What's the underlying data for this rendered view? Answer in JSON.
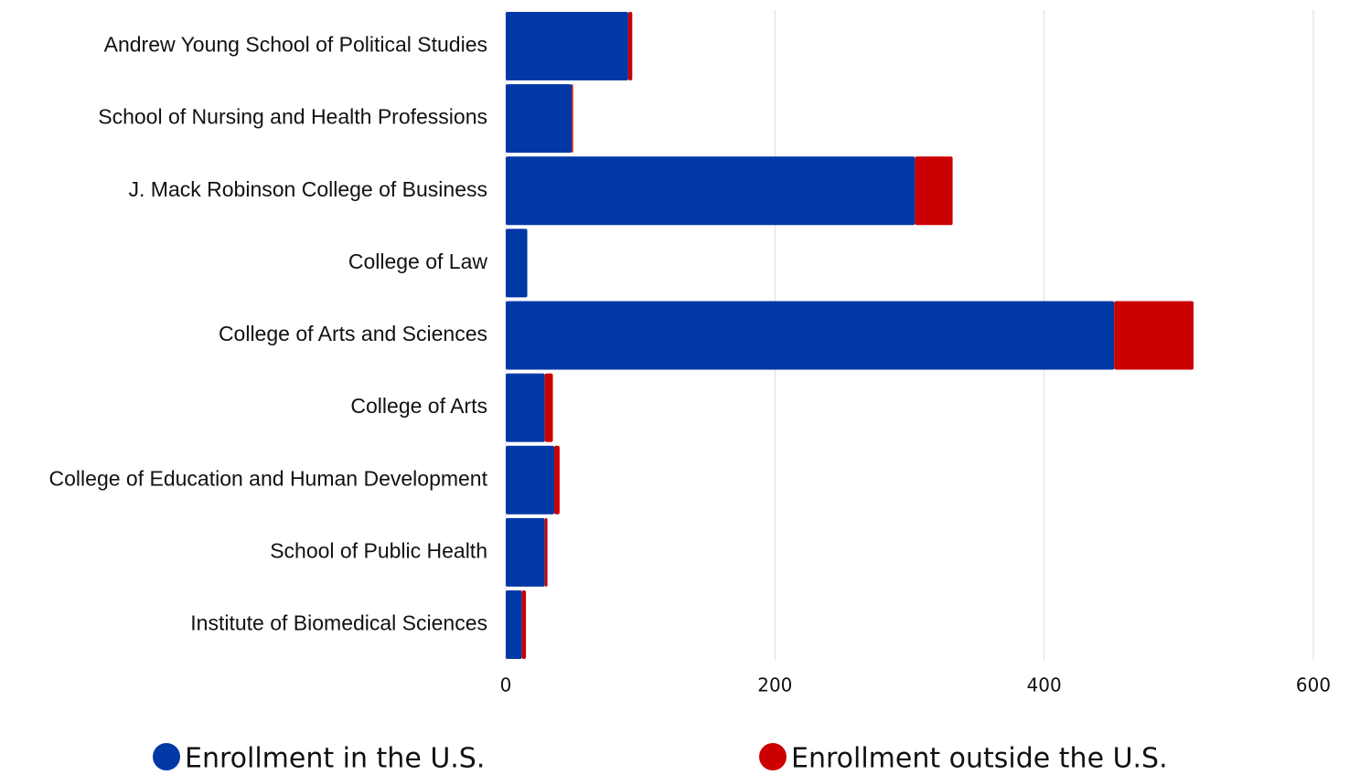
{
  "chart_data": {
    "type": "stacked_barh",
    "categories": [
      "Andrew Young School of Political Studies",
      "School of Nursing and Health Professions",
      "J. Mack Robinson College of Business",
      "College of Law",
      "College of Arts and Sciences",
      "College of Arts",
      "College of Education and Human Development",
      "School of Public Health",
      "Institute of Biomedical Sciences"
    ],
    "series": [
      {
        "name": "Enrollment in the U.S.",
        "color": "#0039a6",
        "values": [
          91,
          49,
          304,
          16,
          452,
          29,
          36,
          29,
          12
        ]
      },
      {
        "name": "Enrollment outside the U.S.",
        "color": "#cc0000",
        "values": [
          3,
          1,
          28,
          0,
          59,
          6,
          4,
          2,
          3
        ]
      }
    ],
    "xlim": [
      0,
      600
    ],
    "xticks": [
      0,
      200,
      400,
      600
    ],
    "grid": true,
    "legend": "bottom"
  }
}
